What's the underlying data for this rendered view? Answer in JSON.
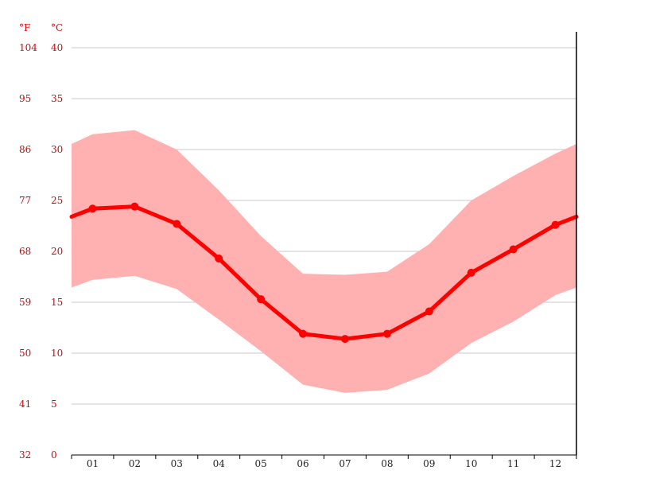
{
  "chart_data": {
    "type": "area",
    "categories": [
      "01",
      "02",
      "03",
      "04",
      "05",
      "06",
      "07",
      "08",
      "09",
      "10",
      "11",
      "12"
    ],
    "unit_f": "°F",
    "unit_c": "°C",
    "y_ticks_c": [
      "0",
      "5",
      "10",
      "15",
      "20",
      "25",
      "30",
      "35",
      "40"
    ],
    "y_ticks_f": [
      "32",
      "41",
      "50",
      "59",
      "68",
      "77",
      "86",
      "95",
      "104"
    ],
    "ylim": [
      0,
      40
    ],
    "grid": true,
    "series": [
      {
        "values": [
          24.2,
          24.4,
          22.7,
          19.3,
          15.3,
          11.9,
          11.4,
          11.9,
          14.1,
          17.9,
          20.2,
          22.6
        ]
      }
    ],
    "band": {
      "upper": [
        31.5,
        31.9,
        30.0,
        26.0,
        21.5,
        17.8,
        17.7,
        18.0,
        20.7,
        25.0,
        27.4,
        29.6
      ],
      "lower": [
        17.2,
        17.6,
        16.3,
        13.3,
        10.2,
        6.9,
        6.1,
        6.4,
        8.0,
        11.0,
        13.1,
        15.7
      ]
    },
    "series_color": "#ff0000",
    "band_color": "#ffb0b0",
    "axis_label_color": "#e00000"
  }
}
